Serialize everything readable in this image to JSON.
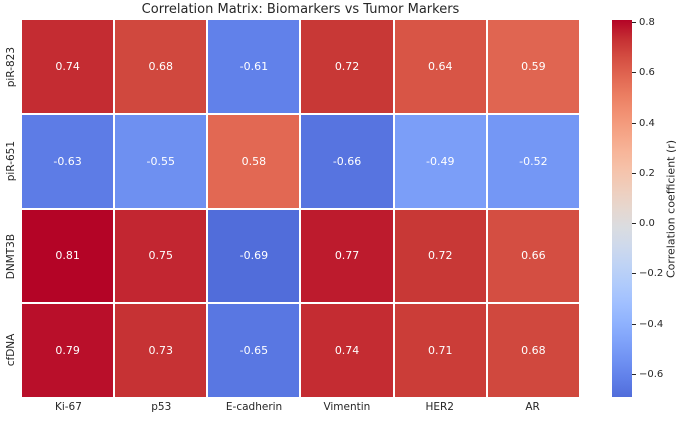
{
  "chart_data": {
    "type": "heatmap",
    "title": "Correlation Matrix: Biomarkers vs Tumor Markers",
    "rows": [
      "piR-823",
      "piR-651",
      "DNMT3B",
      "cfDNA"
    ],
    "columns": [
      "Ki-67",
      "p53",
      "E-cadherin",
      "Vimentin",
      "HER2",
      "AR"
    ],
    "values": [
      [
        0.74,
        0.68,
        -0.61,
        0.72,
        0.64,
        0.59
      ],
      [
        -0.63,
        -0.55,
        0.58,
        -0.66,
        -0.49,
        -0.52
      ],
      [
        0.81,
        0.75,
        -0.69,
        0.77,
        0.72,
        0.66
      ],
      [
        0.79,
        0.73,
        -0.65,
        0.74,
        0.71,
        0.68
      ]
    ],
    "annotation_decimals": 2,
    "vmin": -0.69,
    "vmax": 0.81,
    "grid_on": false,
    "legend_position": "colorbar-right",
    "colorbar": {
      "label": "Correlation coefficient (r)",
      "ticks": [
        0.8,
        0.6,
        0.4,
        0.2,
        0.0,
        -0.2,
        -0.4,
        -0.6
      ],
      "tick_decimals": 1
    },
    "colormap": {
      "name": "coolwarm",
      "center": 0,
      "crop_low": 0.074,
      "crop_high": 1.0,
      "stops": [
        [
          0.0,
          [
            59,
            76,
            192
          ]
        ],
        [
          0.0625,
          [
            77,
            104,
            215
          ]
        ],
        [
          0.125,
          [
            98,
            130,
            234
          ]
        ],
        [
          0.1875,
          [
            119,
            154,
            247
          ]
        ],
        [
          0.25,
          [
            141,
            176,
            254
          ]
        ],
        [
          0.3125,
          [
            163,
            194,
            255
          ]
        ],
        [
          0.375,
          [
            184,
            208,
            249
          ]
        ],
        [
          0.4375,
          [
            204,
            217,
            238
          ]
        ],
        [
          0.5,
          [
            221,
            221,
            221
          ]
        ],
        [
          0.5625,
          [
            236,
            211,
            197
          ]
        ],
        [
          0.625,
          [
            245,
            196,
            173
          ]
        ],
        [
          0.6875,
          [
            247,
            177,
            148
          ]
        ],
        [
          0.75,
          [
            244,
            154,
            123
          ]
        ],
        [
          0.8125,
          [
            236,
            127,
            99
          ]
        ],
        [
          0.875,
          [
            222,
            96,
            77
          ]
        ],
        [
          0.9375,
          [
            203,
            62,
            56
          ]
        ],
        [
          1.0,
          [
            180,
            4,
            38
          ]
        ]
      ]
    },
    "style": {
      "background": "#ffffff",
      "grid_line_color": "#ffffff",
      "axis_text_color": "#262626",
      "annotation_text_color": "#ffffff"
    }
  }
}
